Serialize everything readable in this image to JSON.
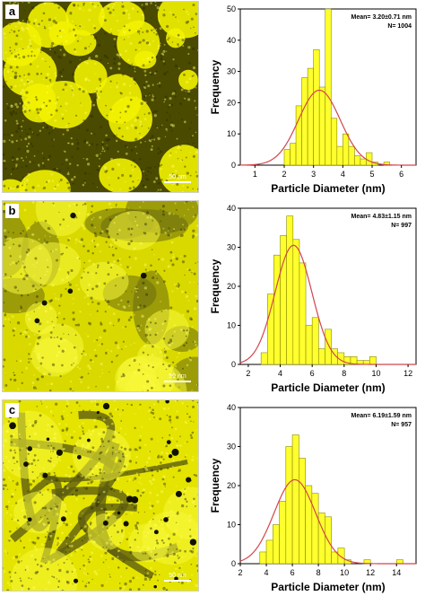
{
  "panels": [
    {
      "label": "a",
      "scale_text": "50 nm"
    },
    {
      "label": "b",
      "scale_text": "50 nm"
    },
    {
      "label": "c",
      "scale_text": "50 nm"
    }
  ],
  "colors": {
    "bar_fill": "#FFFF2E",
    "bar_stroke": "#8a8a00",
    "fit_line": "#D2464B",
    "tem_tint": "#E8E800"
  },
  "chart_data": [
    {
      "type": "bar",
      "panel": "a",
      "annotation": "Mean= 3.20±0.71 nm",
      "annotation2": "N= 1004",
      "xlabel": "Particle Diameter (nm)",
      "ylabel": "Frequency",
      "xlim": [
        0.5,
        6.5
      ],
      "ylim": [
        0,
        50
      ],
      "xticks": [
        1,
        2,
        3,
        4,
        5,
        6
      ],
      "yticks": [
        0,
        10,
        20,
        30,
        40,
        50
      ],
      "bin_width": 0.2,
      "bin_starts": [
        2.0,
        2.2,
        2.4,
        2.6,
        2.8,
        3.0,
        3.2,
        3.4,
        3.6,
        3.8,
        4.0,
        4.2,
        4.4,
        4.6,
        4.8,
        5.0,
        5.4
      ],
      "values": [
        5,
        7,
        19,
        28,
        31,
        37,
        25,
        50,
        15,
        6,
        10,
        6,
        3,
        2,
        4,
        1,
        1
      ],
      "fit_curve": {
        "mean": 3.2,
        "sd": 0.71,
        "peak": 24
      }
    },
    {
      "type": "bar",
      "panel": "b",
      "annotation": "Mean= 4.83±1.15 nm",
      "annotation2": "N= 997",
      "xlabel": "Particle Diameter (nm)",
      "ylabel": "Frequency",
      "xlim": [
        1.5,
        12.5
      ],
      "ylim": [
        0,
        40
      ],
      "xticks": [
        2,
        4,
        6,
        8,
        10,
        12
      ],
      "yticks": [
        0,
        10,
        20,
        30,
        40
      ],
      "bin_width": 0.4,
      "bin_starts": [
        2.8,
        3.2,
        3.6,
        4.0,
        4.4,
        4.8,
        5.2,
        5.6,
        6.0,
        6.4,
        6.8,
        7.2,
        7.6,
        8.0,
        8.4,
        8.8,
        9.2,
        9.6
      ],
      "values": [
        3,
        18,
        28,
        33,
        38,
        32,
        26,
        10,
        12,
        4,
        9,
        4,
        3,
        2,
        2,
        1,
        1,
        2
      ],
      "fit_curve": {
        "mean": 4.83,
        "sd": 1.15,
        "peak": 30.5
      }
    },
    {
      "type": "bar",
      "panel": "c",
      "annotation": "Mean= 6.19±1.59 nm",
      "annotation2": "N= 957",
      "xlabel": "Particle Diameter (nm)",
      "ylabel": "Frequency",
      "xlim": [
        2,
        15.5
      ],
      "ylim": [
        0,
        40
      ],
      "xticks": [
        2,
        4,
        6,
        8,
        10,
        12,
        14
      ],
      "yticks": [
        0,
        10,
        20,
        30,
        40
      ],
      "bin_width": 0.5,
      "bin_starts": [
        3.5,
        4.0,
        4.5,
        5.0,
        5.5,
        6.0,
        6.5,
        7.0,
        7.5,
        8.0,
        8.5,
        9.0,
        9.5,
        10.0,
        11.5,
        14.0
      ],
      "values": [
        3,
        6,
        10,
        16,
        30,
        33,
        27,
        20,
        18,
        13,
        12,
        3,
        4,
        1,
        1,
        1
      ],
      "fit_curve": {
        "mean": 6.19,
        "sd": 1.59,
        "peak": 21.5
      }
    }
  ]
}
